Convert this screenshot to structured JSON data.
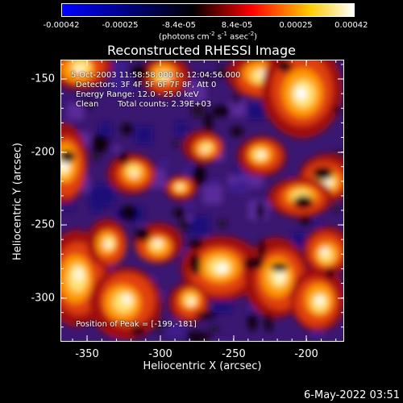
{
  "colorbar": {
    "tick_labels": [
      "-0.00042",
      "-0.00025",
      "-8.4e-05",
      "8.4e-05",
      "0.00025",
      "0.00042"
    ],
    "units_prefix": "(photons cm",
    "units_exp1": "-2",
    "units_mid": " s",
    "units_exp2": "-1",
    "units_mid2": " asec",
    "units_exp3": "-2",
    "units_suffix": ")",
    "colors": [
      "#0000ff",
      "#000000",
      "#ff0000",
      "#ffcc00",
      "#ffffff"
    ]
  },
  "title": "Reconstructed RHESSI Image",
  "info": {
    "time_range": "5-Oct-2003 11:58:58.000 to 12:04:56.000",
    "detectors": "Detectors: 3F 4F 5F 6F 7F 8F, Att 0",
    "energy": "Energy Range: 12.0 - 25.0 keV",
    "algorithm": "Clean",
    "counts": "Total counts: 2.39E+03",
    "peak": "Position of Peak = [-199,-181]"
  },
  "axes": {
    "xlabel": "Heliocentric X (arcsec)",
    "ylabel": "Heliocentric Y (arcsec)",
    "xticks": [
      "-350",
      "-300",
      "-250",
      "-200"
    ],
    "yticks": [
      "-150",
      "-200",
      "-250",
      "-300"
    ]
  },
  "footer": "6-May-2022 03:51"
}
